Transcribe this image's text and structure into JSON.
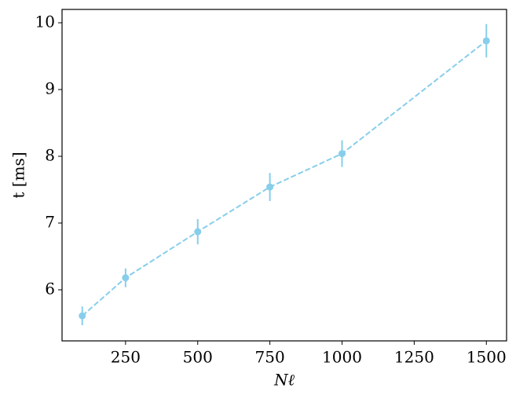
{
  "chart_data": {
    "type": "errorbar_line",
    "xlabel": "Nℓ",
    "ylabel": "t [ms]",
    "x": [
      100,
      250,
      500,
      750,
      1000,
      1500
    ],
    "series": [
      {
        "color": "#87ceeb",
        "values": [
          5.61,
          6.18,
          6.87,
          7.54,
          8.04,
          9.73
        ],
        "errors": [
          0.14,
          0.14,
          0.19,
          0.21,
          0.2,
          0.25
        ]
      }
    ],
    "xlim": [
      30,
      1570
    ],
    "ylim": [
      5.235,
      10.2
    ],
    "xticks": [
      250,
      500,
      750,
      1000,
      1250,
      1500
    ],
    "yticks": [
      6,
      7,
      8,
      9,
      10
    ],
    "grid": false,
    "line_style": "dashed"
  }
}
